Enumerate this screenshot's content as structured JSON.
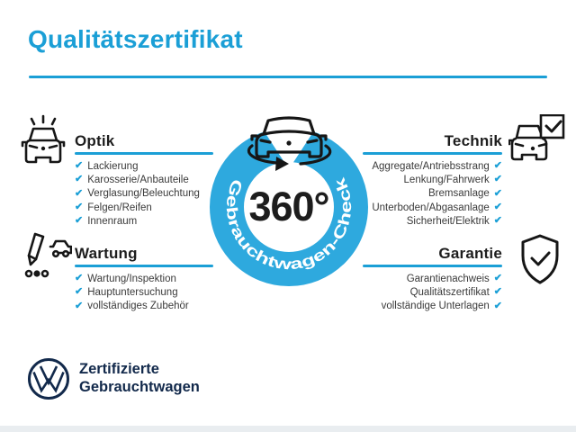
{
  "header": {
    "title": "Qualitätszertifikat"
  },
  "badge": {
    "degree_label": "360°",
    "ring_label": "Gebrauchtwagen-Check"
  },
  "sections": {
    "optik": {
      "title": "Optik",
      "items": [
        "Lackierung",
        "Karosserie/Anbauteile",
        "Verglasung/Beleuchtung",
        "Felgen/Reifen",
        "Innenraum"
      ]
    },
    "technik": {
      "title": "Technik",
      "items": [
        "Aggregate/Antriebsstrang",
        "Lenkung/Fahrwerk",
        "Bremsanlage",
        "Unterboden/Abgasanlage",
        "Sicherheit/Elektrik"
      ]
    },
    "wartung": {
      "title": "Wartung",
      "items": [
        "Wartung/Inspektion",
        "Hauptuntersuchung",
        "vollständiges Zubehör"
      ]
    },
    "garantie": {
      "title": "Garantie",
      "items": [
        "Garantienachweis",
        "Qualitätszertifikat",
        "vollständige Unterlagen"
      ]
    }
  },
  "footer": {
    "brand_line1": "Zertifizierte",
    "brand_line2": "Gebrauchtwagen"
  },
  "icons": {
    "check": "✔"
  },
  "colors": {
    "accent": "#1b9fd6",
    "ring": "#2ea9de",
    "navy": "#12294b",
    "ink": "#3a3a3a",
    "heading": "#1d1d1d",
    "icon": "#161616",
    "strip": "#e9edf0",
    "ring_text": "#ffffff",
    "bg": "#ffffff"
  }
}
